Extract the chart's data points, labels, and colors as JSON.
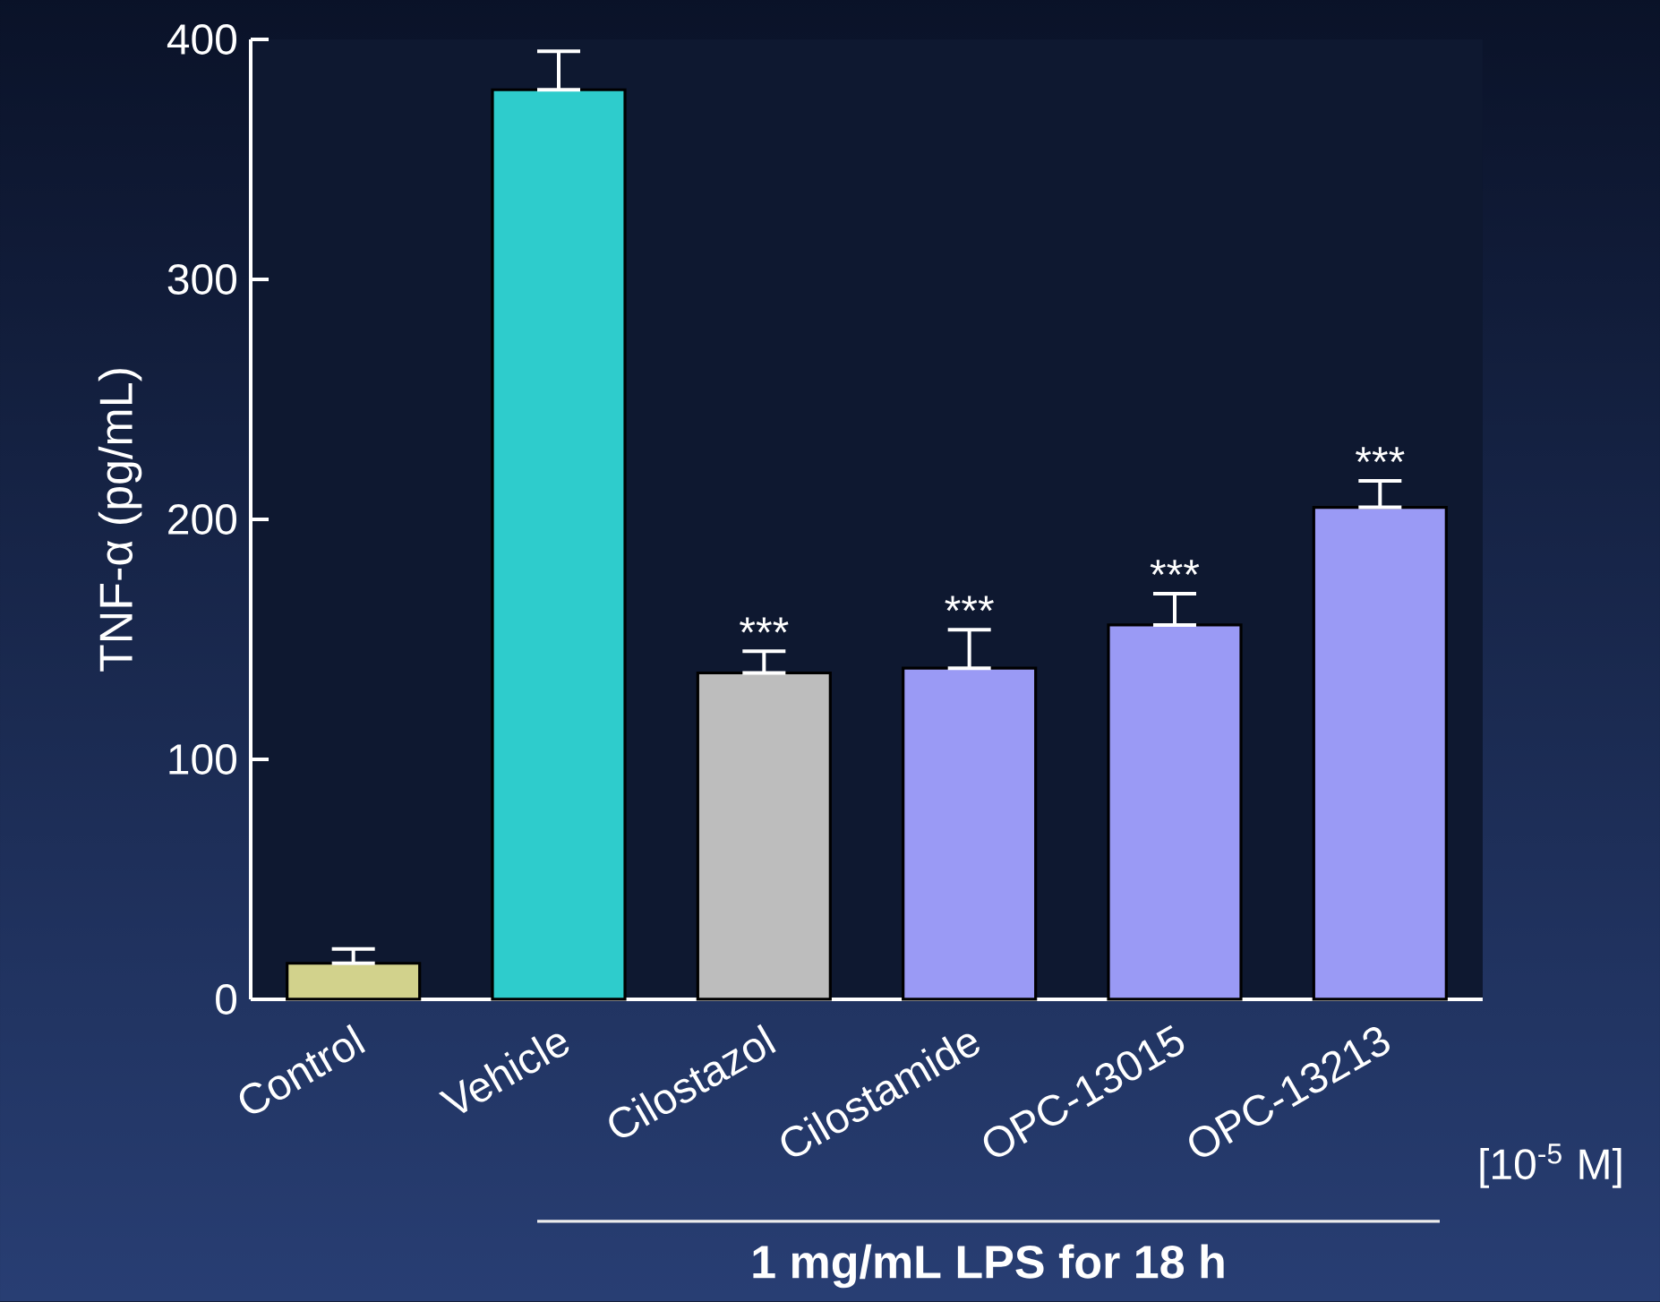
{
  "chart_data": {
    "type": "bar",
    "ylabel": "TNF-α (pg/mL)",
    "categories": [
      "Control",
      "Vehicle",
      "Cilostazol",
      "Cilostamide",
      "OPC-13015",
      "OPC-13213"
    ],
    "values": [
      15,
      379,
      136,
      138,
      156,
      205
    ],
    "colors": [
      "#d2d28c",
      "#2ecccc",
      "#bdbdbd",
      "#9a9af5",
      "#9a9af5",
      "#9a9af5"
    ],
    "errors": [
      [
        15,
        21
      ],
      [
        379,
        395
      ],
      [
        136,
        145
      ],
      [
        138,
        154
      ],
      [
        156,
        169
      ],
      [
        205,
        216
      ]
    ],
    "ylim": [
      0,
      400
    ],
    "yticks": [
      0,
      100,
      200,
      300,
      400
    ],
    "annotations": [
      {
        "text": "***",
        "x": "Cilostazol",
        "y": 145
      },
      {
        "text": "***",
        "x": "Cilostamide",
        "y": 154
      },
      {
        "text": "***",
        "x": "OPC-13015",
        "y": 169
      },
      {
        "text": "***",
        "x": "OPC-13213",
        "y": 216
      },
      "[10$^{-5}$ M]",
      "1 mg/mL LPS for 18 h"
    ]
  }
}
